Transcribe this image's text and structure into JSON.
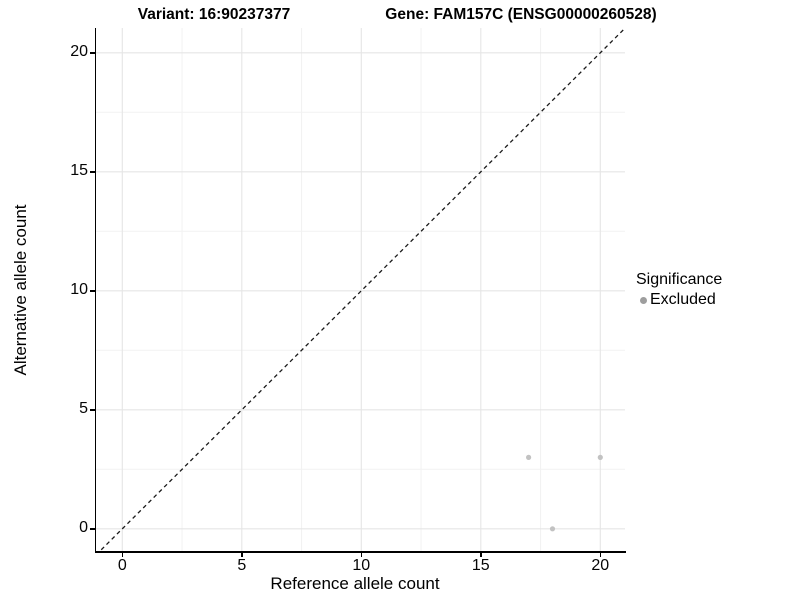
{
  "titles": {
    "left": "Variant: 16:90237377",
    "right": "Gene: FAM157C (ENSG00000260528)"
  },
  "legend": {
    "title": "Significance",
    "items": [
      {
        "label": "Excluded",
        "swatch_color": "#9e9e9e"
      }
    ]
  },
  "colors": {
    "background": "#ffffff",
    "major_grid": "#e5e5e5",
    "minor_grid": "#f2f2f2",
    "axis_line": "#000000",
    "reference_line": "#1a1a1a",
    "point": "#c2c2c2"
  },
  "chart_data": {
    "type": "scatter",
    "title": "Variant: 16:90237377 | Gene: FAM157C (ENSG00000260528)",
    "xlabel": "Reference allele count",
    "ylabel": "Alternative allele count",
    "xlim": [
      -1.1,
      21.05
    ],
    "ylim": [
      -1.05,
      21.05
    ],
    "x_ticks": [
      0,
      5,
      10,
      15,
      20
    ],
    "y_ticks": [
      0,
      5,
      10,
      15,
      20
    ],
    "x_minor_gridlines": [
      2.5,
      7.5,
      12.5,
      17.5
    ],
    "y_minor_gridlines": [
      2.5,
      7.5,
      12.5,
      17.5
    ],
    "grid": "on",
    "legend_position": "right",
    "series": [
      {
        "name": "Excluded",
        "color": "#c2c2c2",
        "points": [
          [
            17,
            3
          ],
          [
            20,
            3
          ],
          [
            18,
            0
          ]
        ]
      }
    ],
    "reference_line": {
      "slope": 1,
      "intercept": 0,
      "style": "dashed",
      "color": "#1a1a1a"
    }
  }
}
